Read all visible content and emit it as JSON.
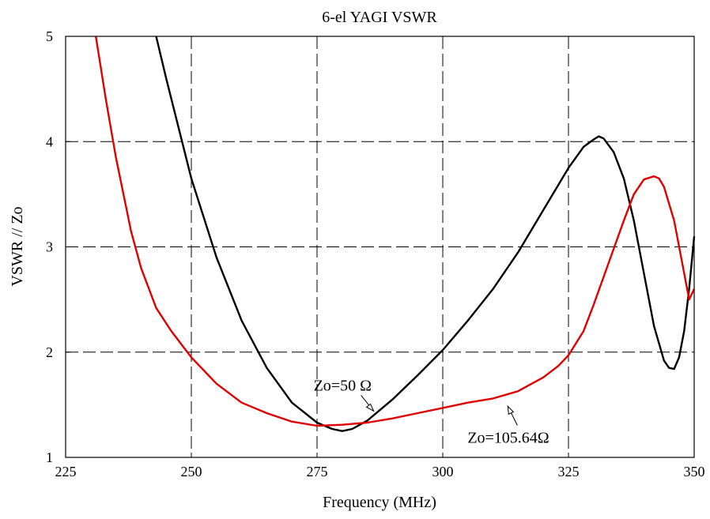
{
  "chart_data": {
    "type": "line",
    "title": "6-el YAGI VSWR",
    "xlabel": "Frequency (MHz)",
    "ylabel": "VSWR // Zo",
    "xlim": [
      225,
      350
    ],
    "ylim": [
      1,
      5
    ],
    "xticks": [
      225,
      250,
      275,
      300,
      325,
      350
    ],
    "yticks": [
      1,
      2,
      3,
      4,
      5
    ],
    "grid": true,
    "grid_style": "dashed",
    "series": [
      {
        "color": "#000000",
        "x": [
          243,
          245,
          250,
          255,
          260,
          265,
          270,
          275,
          278,
          280,
          282,
          285,
          290,
          295,
          300,
          305,
          310,
          315,
          320,
          325,
          328,
          330,
          331,
          332,
          334,
          336,
          338,
          340,
          342,
          344,
          345,
          346,
          347,
          348,
          349,
          350
        ],
        "values": [
          5.0,
          4.6,
          3.65,
          2.9,
          2.3,
          1.85,
          1.52,
          1.33,
          1.27,
          1.25,
          1.27,
          1.35,
          1.55,
          1.78,
          2.02,
          2.3,
          2.6,
          2.95,
          3.35,
          3.75,
          3.95,
          4.02,
          4.05,
          4.03,
          3.9,
          3.65,
          3.25,
          2.75,
          2.25,
          1.92,
          1.85,
          1.84,
          1.95,
          2.2,
          2.6,
          3.1
        ]
      },
      {
        "color": "#e00000",
        "x": [
          231,
          233,
          235,
          238,
          240,
          243,
          246,
          250,
          255,
          260,
          265,
          270,
          275,
          280,
          285,
          290,
          295,
          300,
          305,
          310,
          315,
          320,
          323,
          325,
          328,
          330,
          333,
          336,
          338,
          340,
          342,
          343,
          344,
          346,
          348,
          349,
          350
        ],
        "values": [
          5.0,
          4.4,
          3.85,
          3.15,
          2.8,
          2.42,
          2.2,
          1.95,
          1.7,
          1.52,
          1.42,
          1.34,
          1.3,
          1.31,
          1.33,
          1.37,
          1.42,
          1.47,
          1.52,
          1.56,
          1.63,
          1.76,
          1.87,
          1.97,
          2.2,
          2.45,
          2.85,
          3.25,
          3.5,
          3.64,
          3.67,
          3.65,
          3.57,
          3.25,
          2.75,
          2.5,
          2.6
        ]
      }
    ],
    "annotations": [
      {
        "text": "Zo=50 Ω",
        "x": 285,
        "y": 1.38
      },
      {
        "text": "Zo=105.64Ω",
        "x": 312,
        "y": 1.53
      }
    ]
  }
}
